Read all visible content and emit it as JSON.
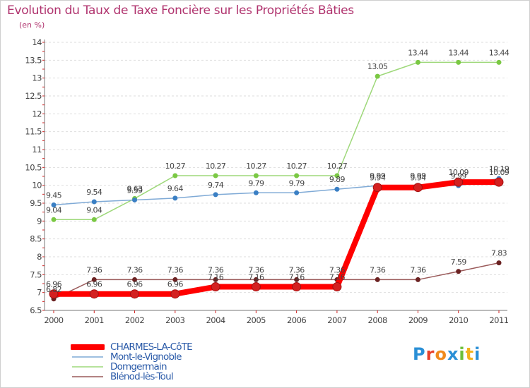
{
  "title": "Evolution du Taux de Taxe Foncière sur les Propriétés Bâties",
  "unit": "(en %)",
  "logo": {
    "text": "Proxiti",
    "colors": [
      "#2a8fd6",
      "#e8402a",
      "#f08a1c",
      "#2a8fd6",
      "#6cbf3a",
      "#f2b21c",
      "#2a8fd6"
    ]
  },
  "chart_data": {
    "type": "line",
    "title": "Evolution du Taux de Taxe Foncière sur les Propriétés Bâties",
    "ylabel": "(en %)",
    "xlabel": "",
    "ylim": [
      6.5,
      14
    ],
    "yticks": [
      "6.5",
      "7",
      "7.5",
      "8",
      "8.5",
      "9",
      "9.5",
      "10",
      "10.5",
      "11",
      "11.5",
      "12",
      "12.5",
      "13",
      "13.5",
      "14"
    ],
    "x": [
      "2000",
      "2001",
      "2002",
      "2003",
      "2004",
      "2005",
      "2006",
      "2007",
      "2008",
      "2009",
      "2010",
      "2011"
    ],
    "series": [
      {
        "name": "CHARMES-LA-CôTE",
        "color": "#ff0000",
        "marker": "#d42020",
        "width": 8,
        "values": [
          6.96,
          6.96,
          6.96,
          6.96,
          7.16,
          7.16,
          7.16,
          7.16,
          9.94,
          9.94,
          10.09,
          10.09
        ],
        "labels": [
          "6.96",
          "6.96",
          "6.96",
          "6.96",
          "7.16",
          "7.16",
          "7.16",
          "7.16",
          "9.94",
          "9.94",
          "10.09",
          "10.09"
        ]
      },
      {
        "name": "Mont-le-Vignoble",
        "color": "#7faad6",
        "marker": "#3a7fc4",
        "width": 1.5,
        "values": [
          9.45,
          9.54,
          9.59,
          9.64,
          9.74,
          9.79,
          9.79,
          9.89,
          9.99,
          9.99,
          9.99,
          10.19
        ],
        "labels": [
          "9.45",
          "9.54",
          "9.59",
          "9.64",
          "9.74",
          "9.79",
          "9.79",
          "9.89",
          "9.99",
          "9.99",
          "9.99",
          "10.19"
        ]
      },
      {
        "name": "Domgermain",
        "color": "#9ed87a",
        "marker": "#7ac843",
        "width": 1.5,
        "values": [
          9.04,
          9.04,
          9.63,
          10.27,
          10.27,
          10.27,
          10.27,
          10.27,
          13.05,
          13.44,
          13.44,
          13.44
        ],
        "labels": [
          "9.04",
          "9.04",
          "9.63",
          "10.27",
          "10.27",
          "10.27",
          "10.27",
          "10.27",
          "13.05",
          "13.44",
          "13.44",
          "13.44"
        ]
      },
      {
        "name": "Blénod-lès-Toul",
        "color": "#9a5a5a",
        "marker": "#6b2222",
        "width": 1.5,
        "values": [
          6.82,
          7.36,
          7.36,
          7.36,
          7.36,
          7.36,
          7.36,
          7.36,
          7.36,
          7.36,
          7.59,
          7.83
        ],
        "labels": [
          "6.82",
          "7.36",
          "7.36",
          "7.36",
          "7.36",
          "7.36",
          "7.36",
          "7.36",
          "7.36",
          "7.36",
          "7.59",
          "7.83"
        ]
      }
    ],
    "legend": "bottom-left"
  }
}
